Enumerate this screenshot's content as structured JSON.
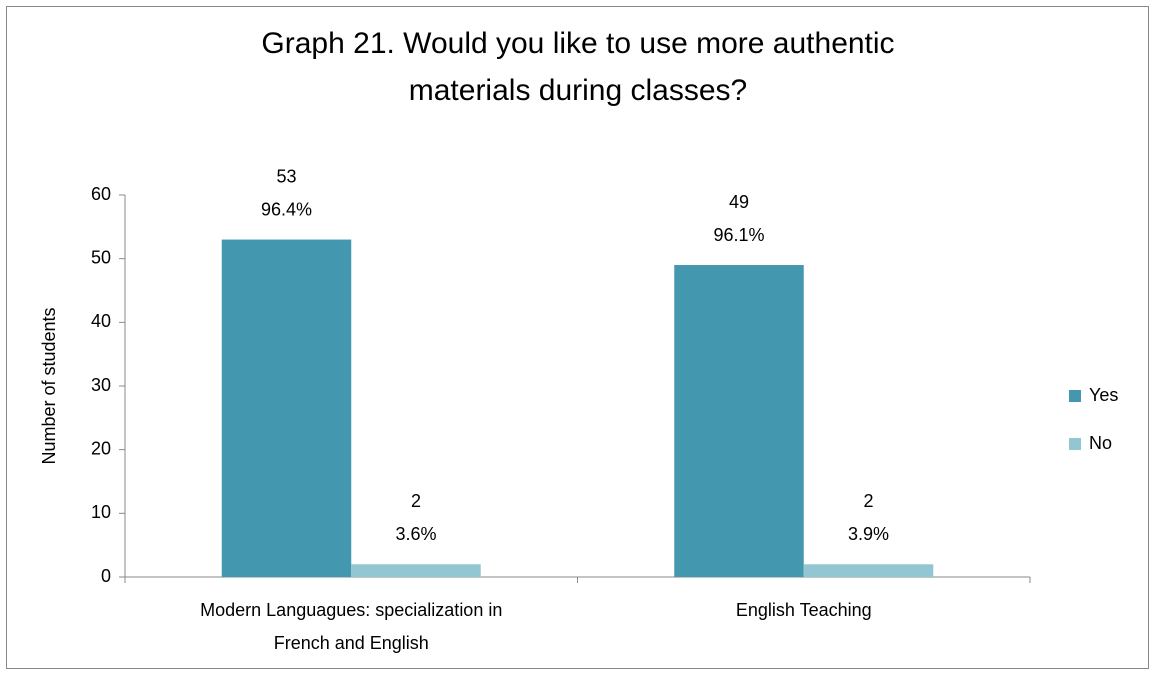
{
  "chart_data": {
    "type": "bar",
    "title": "Graph 21. Would you like to use more authentic materials during classes?",
    "y_label": "Number of students",
    "categories": [
      "Modern Languagues: specialization in French and English",
      "English Teaching"
    ],
    "series": [
      {
        "name": "Yes",
        "color": "#4397ae",
        "values": [
          53,
          49
        ],
        "percent_labels": [
          "96.4%",
          "96.1%"
        ]
      },
      {
        "name": "No",
        "color": "#93c6d3",
        "values": [
          2,
          2
        ],
        "percent_labels": [
          "3.6%",
          "3.9%"
        ]
      }
    ],
    "ylim": [
      0,
      60
    ],
    "yticks": [
      0,
      10,
      20,
      30,
      40,
      50,
      60
    ],
    "grid": false,
    "legend": "right"
  }
}
